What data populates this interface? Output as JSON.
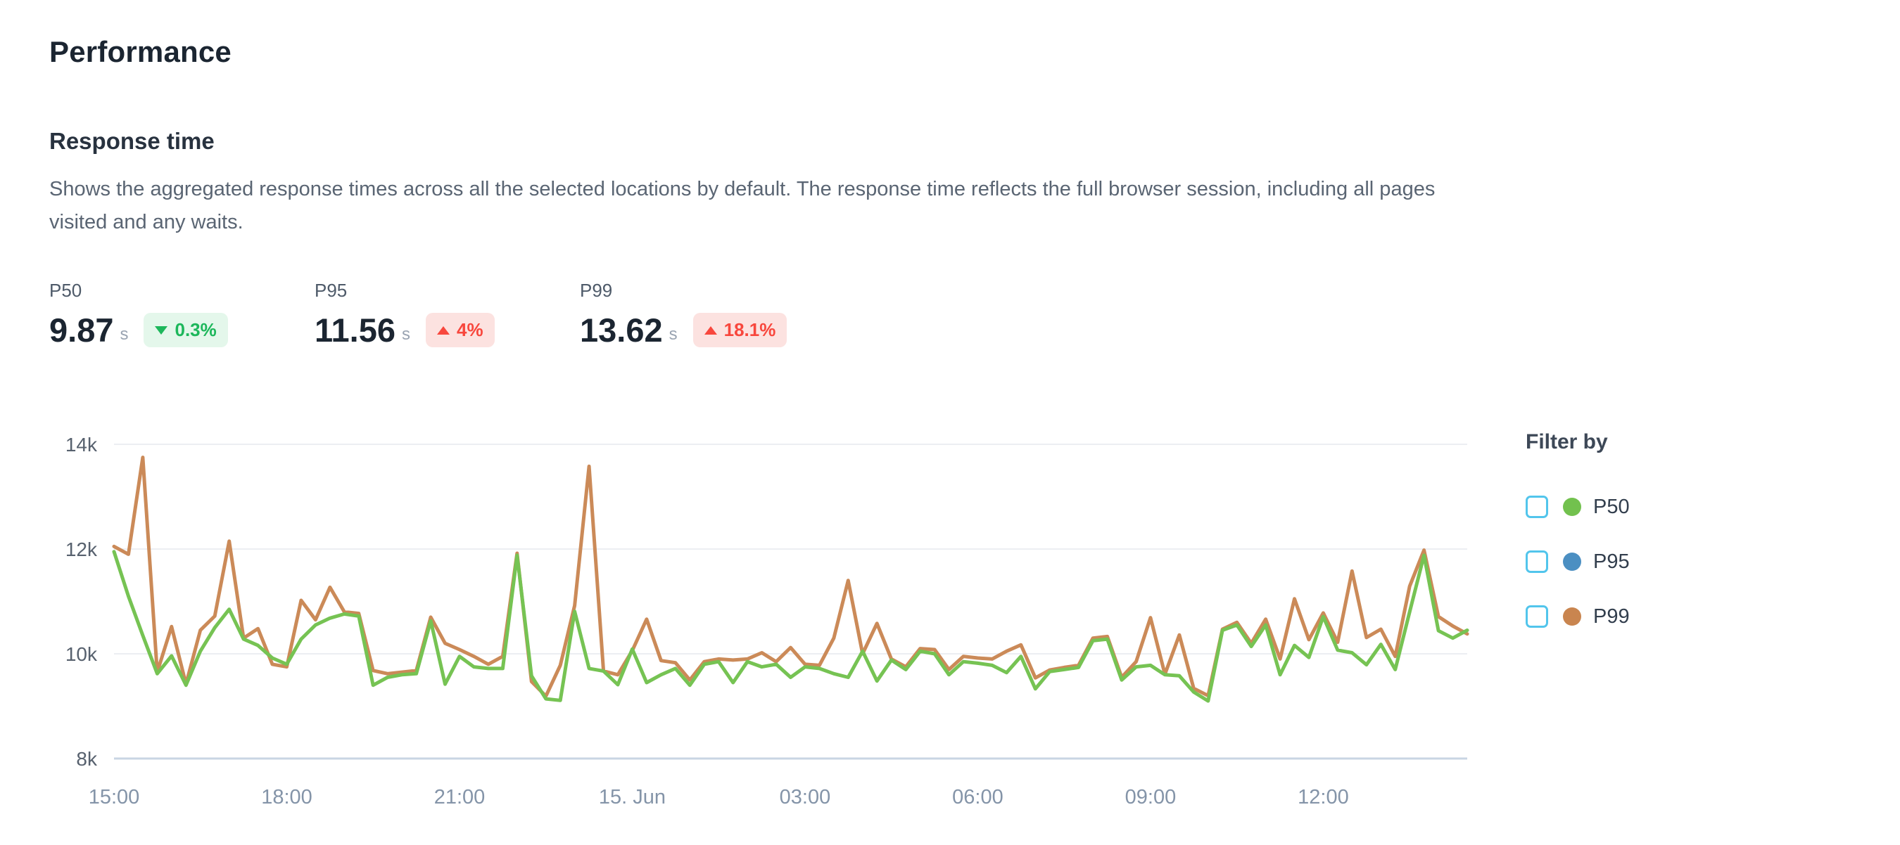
{
  "page": {
    "title": "Performance"
  },
  "section": {
    "title": "Response time",
    "description": "Shows the aggregated response times across all the selected locations by default. The response time reflects the full browser session, including all pages visited and any waits."
  },
  "stats": [
    {
      "label": "P50",
      "value": "9.87",
      "unit": "s",
      "delta": "0.3%",
      "direction": "down",
      "sentiment": "positive"
    },
    {
      "label": "P95",
      "value": "11.56",
      "unit": "s",
      "delta": "4%",
      "direction": "up",
      "sentiment": "negative"
    },
    {
      "label": "P99",
      "value": "13.62",
      "unit": "s",
      "delta": "18.1%",
      "direction": "up",
      "sentiment": "negative"
    }
  ],
  "filter": {
    "title": "Filter by",
    "items": [
      {
        "label": "P50",
        "color": "#72c14e",
        "checked": false
      },
      {
        "label": "P95",
        "color": "#4b8fc2",
        "checked": false
      },
      {
        "label": "P99",
        "color": "#c9854f",
        "checked": false
      }
    ]
  },
  "colors": {
    "badge_green": "#1db75b",
    "badge_green_bg": "#e4f7eb",
    "badge_red": "#f8473d",
    "badge_red_bg": "#fce2e0",
    "grid": "#eceef2",
    "axis": "#c9d5e3",
    "ytick_text": "#57616e",
    "xtick_text": "#8494a8"
  },
  "chart_data": {
    "type": "line",
    "title": "Response time",
    "xlabel": "",
    "ylabel": "",
    "ylim": [
      8000,
      14000
    ],
    "grid": true,
    "legend_position": "right",
    "x_interval_minutes": 15,
    "yticks": [
      {
        "value": 14000,
        "label": "14k"
      },
      {
        "value": 12000,
        "label": "12k"
      },
      {
        "value": 10000,
        "label": "10k"
      },
      {
        "value": 8000,
        "label": "8k"
      }
    ],
    "xticks": [
      {
        "index": 0,
        "label": "15:00"
      },
      {
        "index": 12,
        "label": "18:00"
      },
      {
        "index": 24,
        "label": "21:00"
      },
      {
        "index": 36,
        "label": "15. Jun"
      },
      {
        "index": 48,
        "label": "03:00"
      },
      {
        "index": 60,
        "label": "06:00"
      },
      {
        "index": 72,
        "label": "09:00"
      },
      {
        "index": 84,
        "label": "12:00"
      }
    ],
    "series": [
      {
        "name": "P99",
        "color": "#cb8a58",
        "values": [
          12050,
          11900,
          13750,
          9650,
          10520,
          9420,
          10450,
          10720,
          12150,
          10300,
          10480,
          9800,
          9750,
          11020,
          10650,
          11270,
          10800,
          10770,
          9680,
          9620,
          9650,
          9680,
          10700,
          10200,
          10080,
          9950,
          9800,
          9950,
          11920,
          9470,
          9190,
          9780,
          10920,
          13580,
          9670,
          9600,
          10060,
          10660,
          9870,
          9830,
          9500,
          9850,
          9900,
          9880,
          9900,
          10020,
          9850,
          10120,
          9800,
          9780,
          10300,
          11400,
          10000,
          10580,
          9900,
          9750,
          10100,
          10080,
          9700,
          9950,
          9920,
          9900,
          10050,
          10170,
          9540,
          9690,
          9740,
          9780,
          10300,
          10330,
          9550,
          9850,
          10690,
          9610,
          10360,
          9340,
          9200,
          10470,
          10600,
          10200,
          10660,
          9900,
          11050,
          10270,
          10780,
          10220,
          11580,
          10310,
          10470,
          9950,
          11290,
          11980,
          10710,
          10530,
          10380
        ]
      },
      {
        "name": "P50",
        "color": "#76c353",
        "values": [
          11950,
          11100,
          10350,
          9620,
          9960,
          9400,
          10050,
          10500,
          10850,
          10280,
          10160,
          9920,
          9800,
          10280,
          10550,
          10680,
          10760,
          10720,
          9400,
          9550,
          9600,
          9620,
          10630,
          9420,
          9950,
          9750,
          9720,
          9720,
          11880,
          9580,
          9140,
          9110,
          10810,
          9720,
          9670,
          9410,
          10090,
          9450,
          9600,
          9720,
          9400,
          9800,
          9850,
          9450,
          9850,
          9750,
          9800,
          9550,
          9750,
          9720,
          9620,
          9550,
          10050,
          9480,
          9880,
          9700,
          10050,
          10000,
          9600,
          9850,
          9820,
          9780,
          9640,
          9950,
          9330,
          9660,
          9700,
          9740,
          10250,
          10280,
          9500,
          9750,
          9780,
          9600,
          9580,
          9270,
          9100,
          10450,
          10550,
          10140,
          10550,
          9600,
          10160,
          9930,
          10710,
          10070,
          10020,
          9790,
          10180,
          9700,
          10800,
          11880,
          10440,
          10300,
          10450
        ]
      }
    ]
  }
}
